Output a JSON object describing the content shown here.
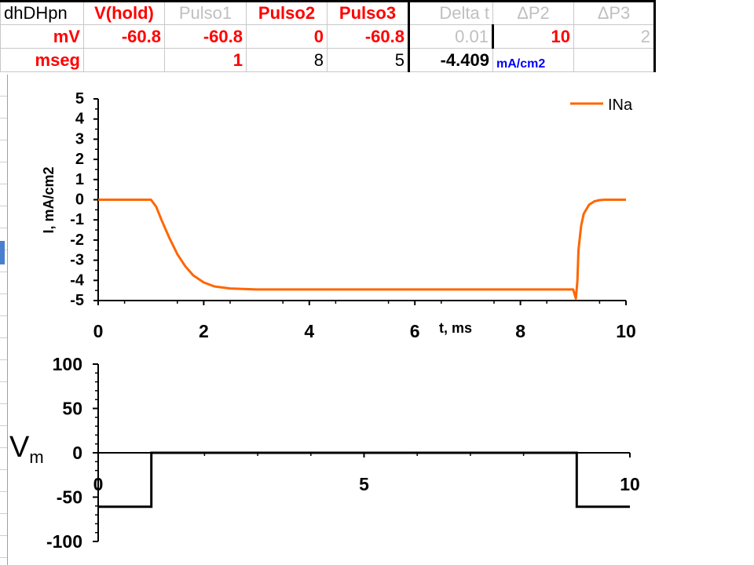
{
  "sheet": {
    "row1": [
      "dhDHpn",
      "V(hold)",
      "Pulso1",
      "Pulso2",
      "Pulso3",
      "Delta t",
      "ΔP2",
      "ΔP3"
    ],
    "row2": [
      "mV",
      "-60.8",
      "-60.8",
      "0",
      "-60.8",
      "0.01",
      "10",
      "2"
    ],
    "row3": [
      "mseg",
      "",
      "1",
      "8",
      "5",
      "-4.409",
      "mA/cm2",
      ""
    ]
  },
  "chart_data": [
    {
      "type": "line",
      "title": "",
      "xlabel": "t, ms",
      "ylabel": "I, mA/cm2",
      "xlim": [
        0,
        10
      ],
      "ylim": [
        -5,
        5
      ],
      "x_ticks": [
        "0",
        "2",
        "4",
        "6",
        "8",
        "10"
      ],
      "y_ticks": [
        "5",
        "4",
        "3",
        "2",
        "1",
        "0",
        "-1",
        "-2",
        "-3",
        "-4",
        "-5"
      ],
      "legend_position": "top-right",
      "series": [
        {
          "name": "INa",
          "color": "#ff6600",
          "x": [
            0,
            1.0,
            1.1,
            1.2,
            1.35,
            1.5,
            1.65,
            1.8,
            2.0,
            2.2,
            2.5,
            2.8,
            3.0,
            4.0,
            5.0,
            6.0,
            7.0,
            8.0,
            9.0,
            9.05,
            9.08,
            9.1,
            9.15,
            9.2,
            9.3,
            9.4,
            9.5,
            9.6,
            10
          ],
          "y": [
            0,
            0,
            -0.35,
            -1.0,
            -1.9,
            -2.7,
            -3.3,
            -3.75,
            -4.1,
            -4.3,
            -4.4,
            -4.43,
            -4.45,
            -4.45,
            -4.45,
            -4.45,
            -4.45,
            -4.45,
            -4.45,
            -4.9,
            -4.0,
            -2.5,
            -1.3,
            -0.7,
            -0.25,
            -0.08,
            -0.02,
            0,
            0
          ]
        }
      ]
    },
    {
      "type": "line",
      "title": "",
      "ylabel": "Vm",
      "xlim": [
        0,
        10
      ],
      "ylim": [
        -100,
        100
      ],
      "x_ticks": [
        "0",
        "5",
        "10"
      ],
      "y_ticks": [
        "100",
        "50",
        "0",
        "-50",
        "-100"
      ],
      "series": [
        {
          "color": "#000000",
          "x": [
            0,
            1,
            1,
            9,
            9,
            10
          ],
          "y": [
            -60.8,
            -60.8,
            0,
            0,
            -60.8,
            -60.8
          ]
        }
      ]
    }
  ]
}
